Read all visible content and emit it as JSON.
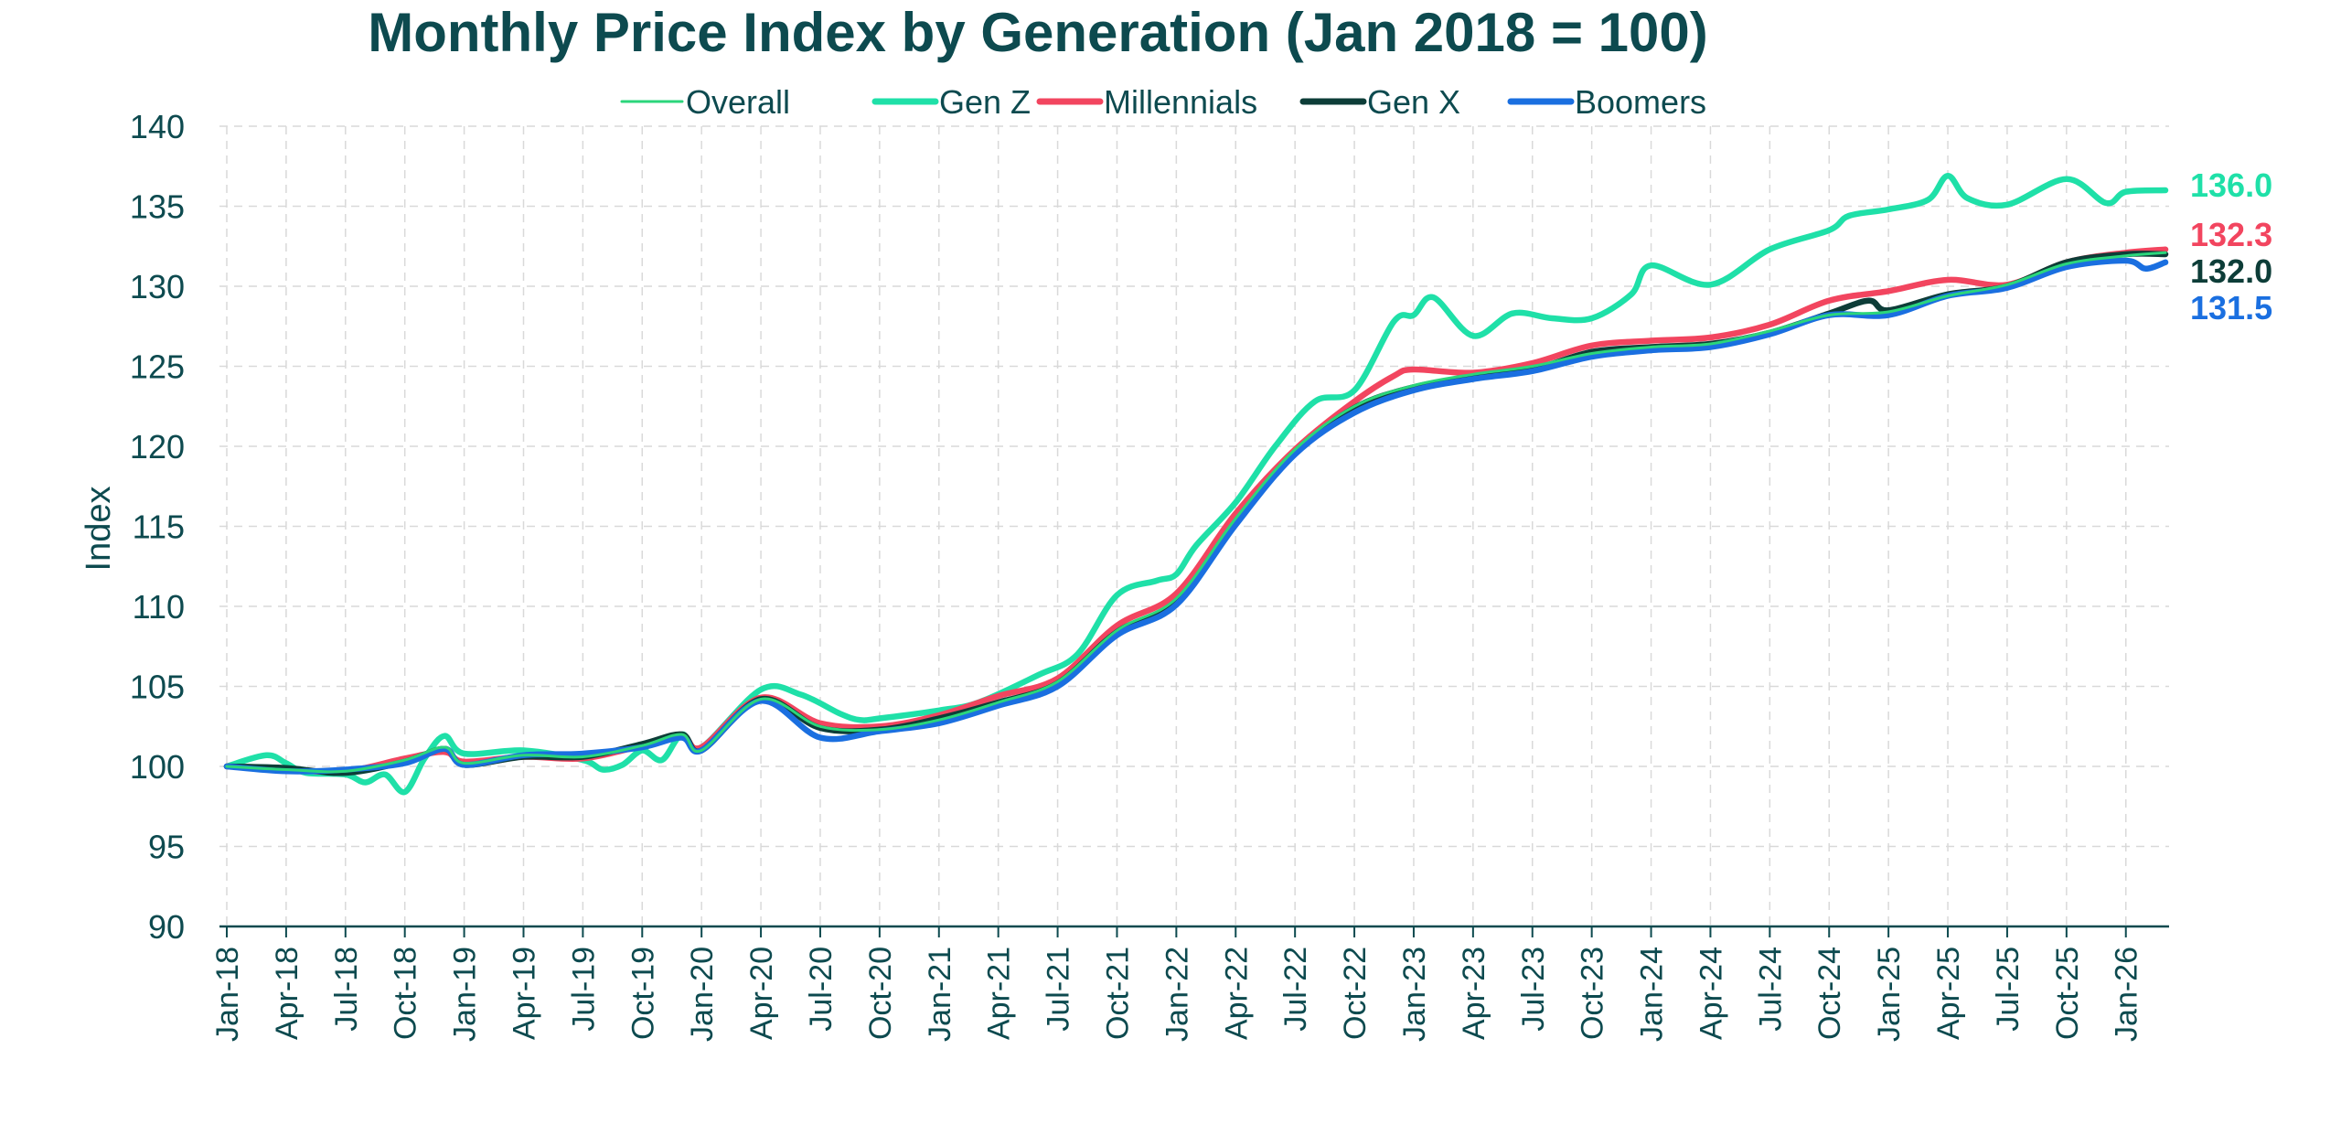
{
  "chart_data": {
    "type": "line",
    "title": "Monthly Price Index by Generation (Jan 2018 = 100)",
    "xlabel": "",
    "ylabel": "Index",
    "ylim": [
      90,
      140
    ],
    "yticks": [
      "90",
      "95",
      "100",
      "105",
      "110",
      "115",
      "120",
      "125",
      "130",
      "135",
      "140"
    ],
    "grid": true,
    "legend_position": "top",
    "x_tick_labels": [
      "Jan-18",
      "Apr-18",
      "Jul-18",
      "Oct-18",
      "Jan-19",
      "Apr-19",
      "Jul-19",
      "Oct-19",
      "Jan-20",
      "Apr-20",
      "Jul-20",
      "Oct-20",
      "Jan-21",
      "Apr-21",
      "Jul-21",
      "Oct-21",
      "Jan-22",
      "Apr-22",
      "Jul-22",
      "Oct-22",
      "Jan-23",
      "Apr-23",
      "Jul-23",
      "Oct-23",
      "Jan-24",
      "Apr-24",
      "Jul-24",
      "Oct-24",
      "Jan-25",
      "Apr-25",
      "Jul-25",
      "Oct-25",
      "Jan-26"
    ],
    "x_first": "Jan-18",
    "x_last": "Mar-26",
    "series": [
      {
        "name": "Overall",
        "color": "#2bd67b",
        "end_label": "",
        "knots": [
          [
            "Jan-18",
            100
          ],
          [
            "Apr-18",
            99.8
          ],
          [
            "Jul-18",
            99.7
          ],
          [
            "Oct-18",
            100.4
          ],
          [
            "Dec-18",
            101.2
          ],
          [
            "Jan-19",
            100.2
          ],
          [
            "Apr-19",
            100.7
          ],
          [
            "Jul-19",
            100.6
          ],
          [
            "Oct-19",
            101.3
          ],
          [
            "Dec-19",
            102
          ],
          [
            "Jan-20",
            101
          ],
          [
            "Apr-20",
            104.2
          ],
          [
            "Jul-20",
            102.5
          ],
          [
            "Oct-20",
            102.3
          ],
          [
            "Jan-21",
            102.9
          ],
          [
            "Apr-21",
            104
          ],
          [
            "Jul-21",
            105.3
          ],
          [
            "Oct-21",
            108.5
          ],
          [
            "Jan-22",
            110.5
          ],
          [
            "Apr-22",
            115.5
          ],
          [
            "Jul-22",
            119.8
          ],
          [
            "Oct-22",
            122.5
          ],
          [
            "Jan-23",
            123.8
          ],
          [
            "Apr-23",
            124.5
          ],
          [
            "Jul-23",
            125
          ],
          [
            "Oct-23",
            125.8
          ],
          [
            "Jan-24",
            126.2
          ],
          [
            "Apr-24",
            126.4
          ],
          [
            "Jul-24",
            127.2
          ],
          [
            "Oct-24",
            128.2
          ],
          [
            "Jan-25",
            128.4
          ],
          [
            "Apr-25",
            129.4
          ],
          [
            "Jul-25",
            130.1
          ],
          [
            "Oct-25",
            131.4
          ],
          [
            "Jan-26",
            131.9
          ],
          [
            "Mar-26",
            132.1
          ]
        ]
      },
      {
        "name": "Gen Z",
        "color": "#1fe0a8",
        "end_label": "136.0",
        "knots": [
          [
            "Jan-18",
            100
          ],
          [
            "Mar-18",
            100.7
          ],
          [
            "Apr-18",
            100.2
          ],
          [
            "May-18",
            99.6
          ],
          [
            "Jul-18",
            99.5
          ],
          [
            "Aug-18",
            99.0
          ],
          [
            "Sep-18",
            99.5
          ],
          [
            "Oct-18",
            98.4
          ],
          [
            "Nov-18",
            100.5
          ],
          [
            "Dec-18",
            101.9
          ],
          [
            "Jan-19",
            100.8
          ],
          [
            "Apr-19",
            101
          ],
          [
            "Jul-19",
            100.4
          ],
          [
            "Aug-19",
            99.8
          ],
          [
            "Sep-19",
            100.1
          ],
          [
            "Oct-19",
            101
          ],
          [
            "Nov-19",
            100.4
          ],
          [
            "Dec-19",
            102
          ],
          [
            "Jan-20",
            101.2
          ],
          [
            "Apr-20",
            104.8
          ],
          [
            "Jun-20",
            104.5
          ],
          [
            "Aug-20",
            103.3
          ],
          [
            "Sep-20",
            102.9
          ],
          [
            "Oct-20",
            103
          ],
          [
            "Jan-21",
            103.5
          ],
          [
            "Mar-21",
            104
          ],
          [
            "Jun-21",
            105.7
          ],
          [
            "Aug-21",
            107
          ],
          [
            "Oct-21",
            110.7
          ],
          [
            "Dec-21",
            111.6
          ],
          [
            "Jan-22",
            112
          ],
          [
            "Feb-22",
            113.8
          ],
          [
            "Apr-22",
            116.5
          ],
          [
            "Jun-22",
            120
          ],
          [
            "Aug-22",
            122.8
          ],
          [
            "Oct-22",
            123.5
          ],
          [
            "Dec-22",
            127.8
          ],
          [
            "Jan-23",
            128.2
          ],
          [
            "Feb-23",
            129.3
          ],
          [
            "Apr-23",
            126.9
          ],
          [
            "Jun-23",
            128.3
          ],
          [
            "Aug-23",
            128
          ],
          [
            "Oct-23",
            128
          ],
          [
            "Dec-23",
            129.5
          ],
          [
            "Jan-24",
            131.3
          ],
          [
            "Apr-24",
            130.1
          ],
          [
            "Jul-24",
            132.3
          ],
          [
            "Oct-24",
            133.5
          ],
          [
            "Nov-24",
            134.4
          ],
          [
            "Jan-25",
            134.8
          ],
          [
            "Mar-25",
            135.4
          ],
          [
            "Apr-25",
            136.9
          ],
          [
            "May-25",
            135.5
          ],
          [
            "Jul-25",
            135.1
          ],
          [
            "Oct-25",
            136.7
          ],
          [
            "Dec-25",
            135.2
          ],
          [
            "Jan-26",
            135.9
          ],
          [
            "Mar-26",
            136
          ]
        ]
      },
      {
        "name": "Millennials",
        "color": "#f2455f",
        "end_label": "132.3",
        "knots": [
          [
            "Jan-18",
            100
          ],
          [
            "Apr-18",
            99.8
          ],
          [
            "Jul-18",
            99.7
          ],
          [
            "Oct-18",
            100.5
          ],
          [
            "Dec-18",
            100.9
          ],
          [
            "Jan-19",
            100.3
          ],
          [
            "Apr-19",
            100.6
          ],
          [
            "Jul-19",
            100.5
          ],
          [
            "Oct-19",
            101.3
          ],
          [
            "Dec-19",
            101.9
          ],
          [
            "Jan-20",
            101.2
          ],
          [
            "Apr-20",
            104.3
          ],
          [
            "Jul-20",
            102.7
          ],
          [
            "Oct-20",
            102.5
          ],
          [
            "Jan-21",
            103.2
          ],
          [
            "Apr-21",
            104.4
          ],
          [
            "Jul-21",
            105.5
          ],
          [
            "Oct-21",
            108.8
          ],
          [
            "Jan-22",
            110.8
          ],
          [
            "Apr-22",
            115.8
          ],
          [
            "Jul-22",
            119.8
          ],
          [
            "Oct-22",
            122.8
          ],
          [
            "Dec-22",
            124.4
          ],
          [
            "Jan-23",
            124.8
          ],
          [
            "Apr-23",
            124.6
          ],
          [
            "Jul-23",
            125.2
          ],
          [
            "Oct-23",
            126.3
          ],
          [
            "Jan-24",
            126.6
          ],
          [
            "Apr-24",
            126.8
          ],
          [
            "Jul-24",
            127.6
          ],
          [
            "Oct-24",
            129.1
          ],
          [
            "Jan-25",
            129.7
          ],
          [
            "Apr-25",
            130.4
          ],
          [
            "Jul-25",
            130.1
          ],
          [
            "Oct-25",
            131.5
          ],
          [
            "Jan-26",
            132.1
          ],
          [
            "Mar-26",
            132.3
          ]
        ]
      },
      {
        "name": "Gen X",
        "color": "#0d3d38",
        "end_label": "132.0",
        "knots": [
          [
            "Jan-18",
            100
          ],
          [
            "Apr-18",
            99.9
          ],
          [
            "Jul-18",
            99.6
          ],
          [
            "Oct-18",
            100.3
          ],
          [
            "Dec-18",
            101.1
          ],
          [
            "Jan-19",
            100.1
          ],
          [
            "Apr-19",
            100.6
          ],
          [
            "Jul-19",
            100.6
          ],
          [
            "Oct-19",
            101.4
          ],
          [
            "Dec-19",
            102
          ],
          [
            "Jan-20",
            101
          ],
          [
            "Apr-20",
            104.2
          ],
          [
            "Jul-20",
            102.4
          ],
          [
            "Oct-20",
            102.3
          ],
          [
            "Jan-21",
            103
          ],
          [
            "Apr-21",
            104
          ],
          [
            "Jul-21",
            105.2
          ],
          [
            "Oct-21",
            108.4
          ],
          [
            "Jan-22",
            110.3
          ],
          [
            "Apr-22",
            115.3
          ],
          [
            "Jul-22",
            119.6
          ],
          [
            "Oct-22",
            122.4
          ],
          [
            "Jan-23",
            123.7
          ],
          [
            "Apr-23",
            124.3
          ],
          [
            "Jul-23",
            124.8
          ],
          [
            "Oct-23",
            125.9
          ],
          [
            "Jan-24",
            126.2
          ],
          [
            "Apr-24",
            126.4
          ],
          [
            "Jul-24",
            127.1
          ],
          [
            "Oct-24",
            128.3
          ],
          [
            "Dec-24",
            129.1
          ],
          [
            "Jan-25",
            128.5
          ],
          [
            "Apr-25",
            129.5
          ],
          [
            "Jul-25",
            130
          ],
          [
            "Oct-25",
            131.5
          ],
          [
            "Jan-26",
            132
          ],
          [
            "Mar-26",
            132
          ]
        ]
      },
      {
        "name": "Boomers",
        "color": "#1a6fe0",
        "end_label": "131.5",
        "knots": [
          [
            "Jan-18",
            100
          ],
          [
            "Apr-18",
            99.7
          ],
          [
            "Jul-18",
            99.8
          ],
          [
            "Oct-18",
            100.2
          ],
          [
            "Dec-18",
            101.1
          ],
          [
            "Jan-19",
            100.1
          ],
          [
            "Apr-19",
            100.7
          ],
          [
            "Jul-19",
            100.8
          ],
          [
            "Oct-19",
            101.2
          ],
          [
            "Dec-19",
            101.8
          ],
          [
            "Jan-20",
            101
          ],
          [
            "Apr-20",
            104.1
          ],
          [
            "Jul-20",
            101.8
          ],
          [
            "Oct-20",
            102.2
          ],
          [
            "Jan-21",
            102.7
          ],
          [
            "Apr-21",
            103.8
          ],
          [
            "Jul-21",
            105
          ],
          [
            "Oct-21",
            108.2
          ],
          [
            "Jan-22",
            110.1
          ],
          [
            "Apr-22",
            115.1
          ],
          [
            "Jul-22",
            119.5
          ],
          [
            "Oct-22",
            122.1
          ],
          [
            "Jan-23",
            123.5
          ],
          [
            "Apr-23",
            124.2
          ],
          [
            "Jul-23",
            124.7
          ],
          [
            "Oct-23",
            125.6
          ],
          [
            "Jan-24",
            126
          ],
          [
            "Apr-24",
            126.2
          ],
          [
            "Jul-24",
            127
          ],
          [
            "Oct-24",
            128.2
          ],
          [
            "Jan-25",
            128.2
          ],
          [
            "Apr-25",
            129.4
          ],
          [
            "Jul-25",
            129.9
          ],
          [
            "Oct-25",
            131.2
          ],
          [
            "Jan-26",
            131.6
          ],
          [
            "Feb-26",
            131.1
          ],
          [
            "Mar-26",
            131.5
          ]
        ]
      }
    ]
  }
}
